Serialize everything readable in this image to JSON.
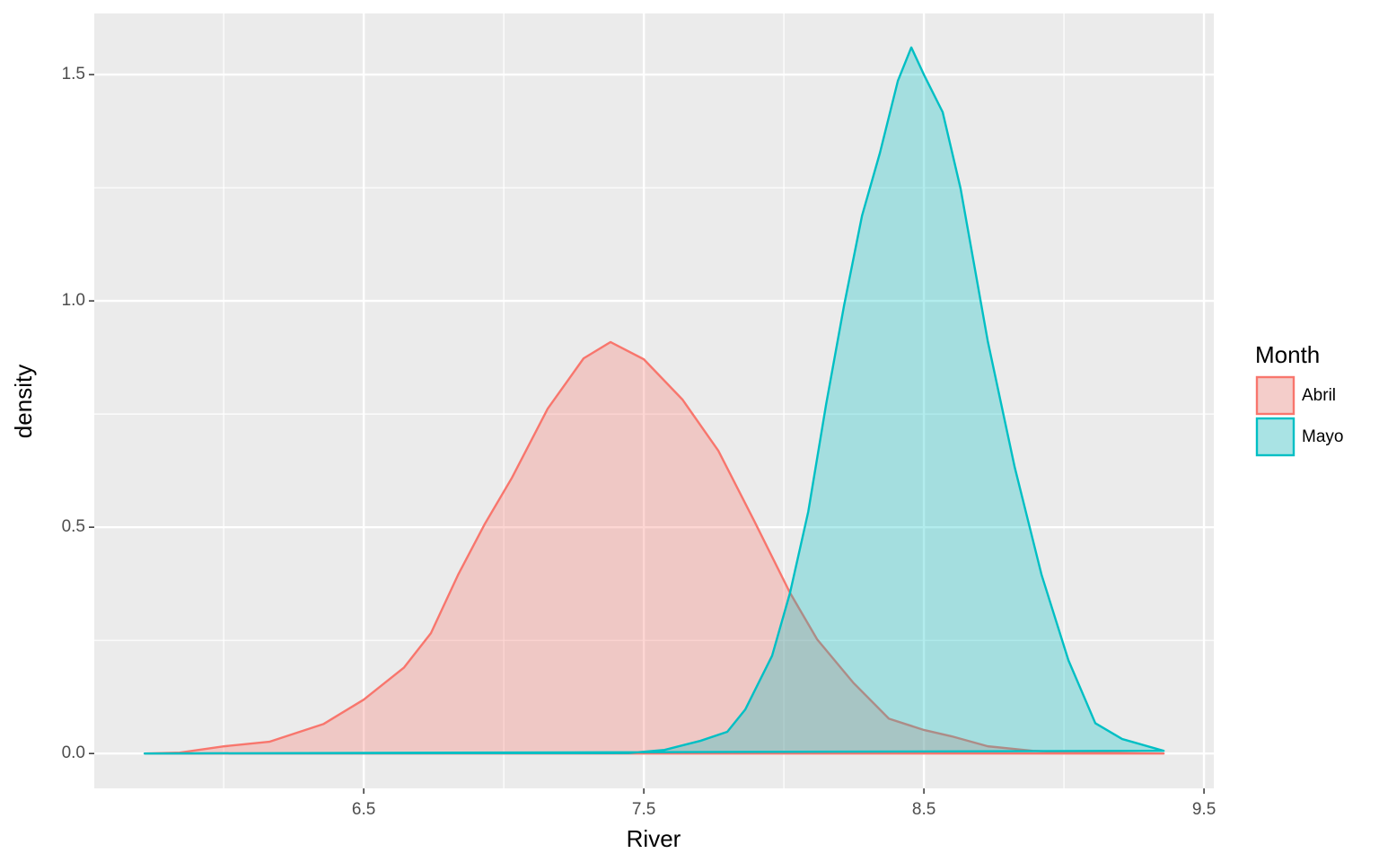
{
  "chart_data": {
    "type": "density",
    "x_label": "River",
    "y_label": "density",
    "legend_title": "Month",
    "legend_position": "right",
    "xlim": [
      5.538,
      9.535
    ],
    "ylim": [
      -0.077,
      1.635
    ],
    "xticks": [
      6.5,
      7.5,
      8.5,
      9.5
    ],
    "yticks": [
      {
        "value": 0,
        "label": "0.0"
      },
      0.5,
      {
        "value": 1,
        "label": "1.0"
      },
      1.5
    ],
    "x_minor_breaks": [
      6,
      7,
      8,
      9
    ],
    "y_minor_breaks": [
      0.25,
      0.75,
      1.25
    ],
    "grid": true,
    "fill_alpha": 0.3,
    "series": [
      {
        "name": "Abril",
        "color": "#F8766D",
        "x": [
          5.718,
          5.843,
          6.003,
          6.163,
          6.356,
          6.5,
          6.644,
          6.74,
          6.837,
          6.933,
          7.029,
          7.157,
          7.285,
          7.381,
          7.5,
          7.638,
          7.766,
          7.894,
          8.022,
          8.119,
          8.247,
          8.375,
          8.5,
          8.599,
          8.728,
          8.888,
          9.048,
          9.356
        ],
        "values": [
          0,
          0.002,
          0.016,
          0.026,
          0.065,
          0.119,
          0.19,
          0.266,
          0.395,
          0.508,
          0.609,
          0.762,
          0.873,
          0.909,
          0.871,
          0.782,
          0.669,
          0.514,
          0.355,
          0.252,
          0.157,
          0.077,
          0.052,
          0.038,
          0.016,
          0.006,
          0.002,
          0
        ]
      },
      {
        "name": "Mayo",
        "color": "#00BFC4",
        "x": [
          5.718,
          7.446,
          7.574,
          7.702,
          7.798,
          7.862,
          7.958,
          8.022,
          8.087,
          8.151,
          8.215,
          8.279,
          8.343,
          8.407,
          8.455,
          8.503,
          8.567,
          8.631,
          8.728,
          8.824,
          8.92,
          9.016,
          9.112,
          9.208,
          9.356
        ],
        "values": [
          0,
          0.001,
          0.008,
          0.028,
          0.048,
          0.097,
          0.216,
          0.355,
          0.534,
          0.772,
          0.99,
          1.188,
          1.327,
          1.486,
          1.56,
          1.496,
          1.417,
          1.248,
          0.911,
          0.633,
          0.395,
          0.206,
          0.067,
          0.032,
          0.006
        ]
      }
    ]
  }
}
